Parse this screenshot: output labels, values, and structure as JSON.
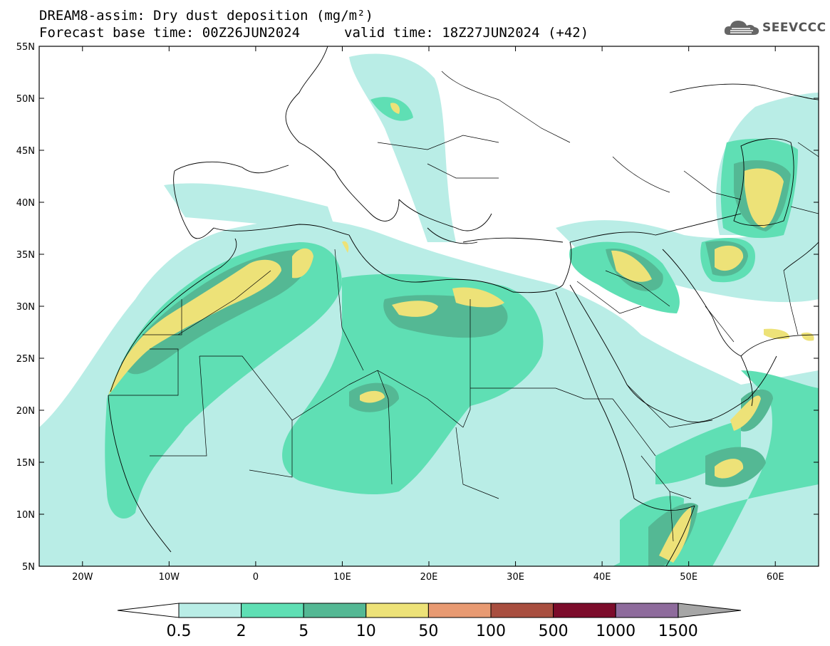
{
  "header": {
    "title": "DREAM8-assim: Dry dust deposition (mg/m²)",
    "base_time": "Forecast base time: 00Z26JUN2024",
    "valid_time": "valid time: 18Z27JUN2024 (+42)",
    "logo_text": "SEEVCCC"
  },
  "map": {
    "lon_range": [
      -25,
      65
    ],
    "lat_range": [
      5,
      55
    ],
    "lat_labels": [
      "55N",
      "50N",
      "45N",
      "40N",
      "35N",
      "30N",
      "25N",
      "20N",
      "15N",
      "10N",
      "5N"
    ],
    "lat_values": [
      55,
      50,
      45,
      40,
      35,
      30,
      25,
      20,
      15,
      10,
      5
    ],
    "lon_labels": [
      "20W",
      "10W",
      "0",
      "10E",
      "20E",
      "30E",
      "40E",
      "50E",
      "60E"
    ],
    "lon_values": [
      -20,
      -10,
      0,
      10,
      20,
      30,
      40,
      50,
      60
    ]
  },
  "legend": {
    "labels": [
      "0.5",
      "2",
      "5",
      "10",
      "50",
      "100",
      "500",
      "1000",
      "1500"
    ],
    "colors": [
      "#b9ede6",
      "#5fdfb4",
      "#54b894",
      "#ede278",
      "#e89a72",
      "#a84e3f",
      "#7c0c2b",
      "#8e6b9c",
      "#a6a6a6"
    ]
  }
}
